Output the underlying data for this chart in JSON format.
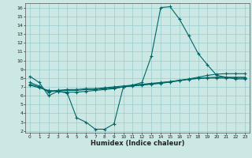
{
  "xlabel": "Humidex (Indice chaleur)",
  "bg_color": "#cce8e4",
  "grid_color": "#99cccc",
  "line_color": "#006666",
  "xlim": [
    -0.5,
    23.5
  ],
  "ylim": [
    1.8,
    16.5
  ],
  "xticks": [
    0,
    1,
    2,
    3,
    4,
    5,
    6,
    7,
    8,
    9,
    10,
    11,
    12,
    13,
    14,
    15,
    16,
    17,
    18,
    19,
    20,
    21,
    22,
    23
  ],
  "yticks": [
    2,
    3,
    4,
    5,
    6,
    7,
    8,
    9,
    10,
    11,
    12,
    13,
    14,
    15,
    16
  ],
  "line1_x": [
    0,
    1,
    2,
    3,
    4,
    5,
    6,
    7,
    8,
    9,
    10,
    11,
    12,
    13,
    14,
    15,
    16,
    17,
    18,
    19,
    20,
    21,
    22,
    23
  ],
  "line1_y": [
    8.2,
    7.5,
    6.0,
    6.5,
    6.3,
    3.5,
    3.0,
    2.2,
    2.2,
    2.8,
    7.0,
    7.2,
    7.5,
    10.5,
    16.0,
    16.1,
    14.7,
    12.8,
    10.8,
    9.5,
    8.3,
    8.1,
    7.9,
    7.9
  ],
  "line2_x": [
    0,
    1,
    2,
    3,
    4,
    5,
    6,
    7,
    8,
    9,
    10,
    11,
    12,
    13,
    14,
    15,
    16,
    17,
    18,
    19,
    20,
    21,
    22,
    23
  ],
  "line2_y": [
    7.5,
    7.1,
    6.4,
    6.6,
    6.7,
    6.7,
    6.8,
    6.8,
    6.9,
    7.0,
    7.1,
    7.2,
    7.3,
    7.4,
    7.5,
    7.6,
    7.75,
    7.9,
    8.1,
    8.3,
    8.45,
    8.5,
    8.5,
    8.5
  ],
  "line3_x": [
    0,
    1,
    2,
    3,
    4,
    5,
    6,
    7,
    8,
    9,
    10,
    11,
    12,
    13,
    14,
    15,
    16,
    17,
    18,
    19,
    20,
    21,
    22,
    23
  ],
  "line3_y": [
    7.2,
    6.9,
    6.6,
    6.5,
    6.4,
    6.4,
    6.5,
    6.6,
    6.7,
    6.8,
    7.0,
    7.1,
    7.2,
    7.3,
    7.4,
    7.55,
    7.7,
    7.85,
    7.95,
    8.0,
    8.0,
    8.0,
    8.0,
    8.0
  ],
  "line4_x": [
    0,
    1,
    2,
    3,
    4,
    5,
    6,
    7,
    8,
    9,
    10,
    11,
    12,
    13,
    14,
    15,
    16,
    17,
    18,
    19,
    20,
    21,
    22,
    23
  ],
  "line4_y": [
    7.3,
    7.0,
    6.5,
    6.6,
    6.6,
    6.6,
    6.7,
    6.7,
    6.8,
    6.9,
    7.0,
    7.15,
    7.25,
    7.35,
    7.45,
    7.58,
    7.72,
    7.88,
    7.98,
    8.05,
    8.1,
    8.1,
    8.1,
    8.1
  ]
}
